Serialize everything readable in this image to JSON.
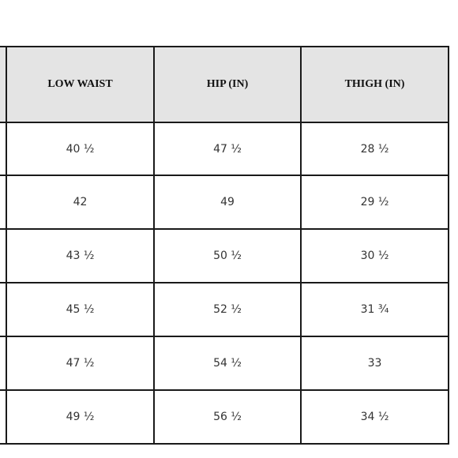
{
  "table": {
    "header": [
      "LOW WAIST",
      "HIP (IN)",
      "THIGH (IN)"
    ],
    "rows": [
      [
        "40 ½",
        "47 ½",
        "28 ½"
      ],
      [
        "42",
        "49",
        "29 ½"
      ],
      [
        "43 ½",
        "50 ½",
        "30 ½"
      ],
      [
        "45 ½",
        "52 ½",
        "31 ¾"
      ],
      [
        "47 ½",
        "54 ½",
        "33"
      ],
      [
        "49 ½",
        "56 ½",
        "34 ½"
      ]
    ]
  }
}
